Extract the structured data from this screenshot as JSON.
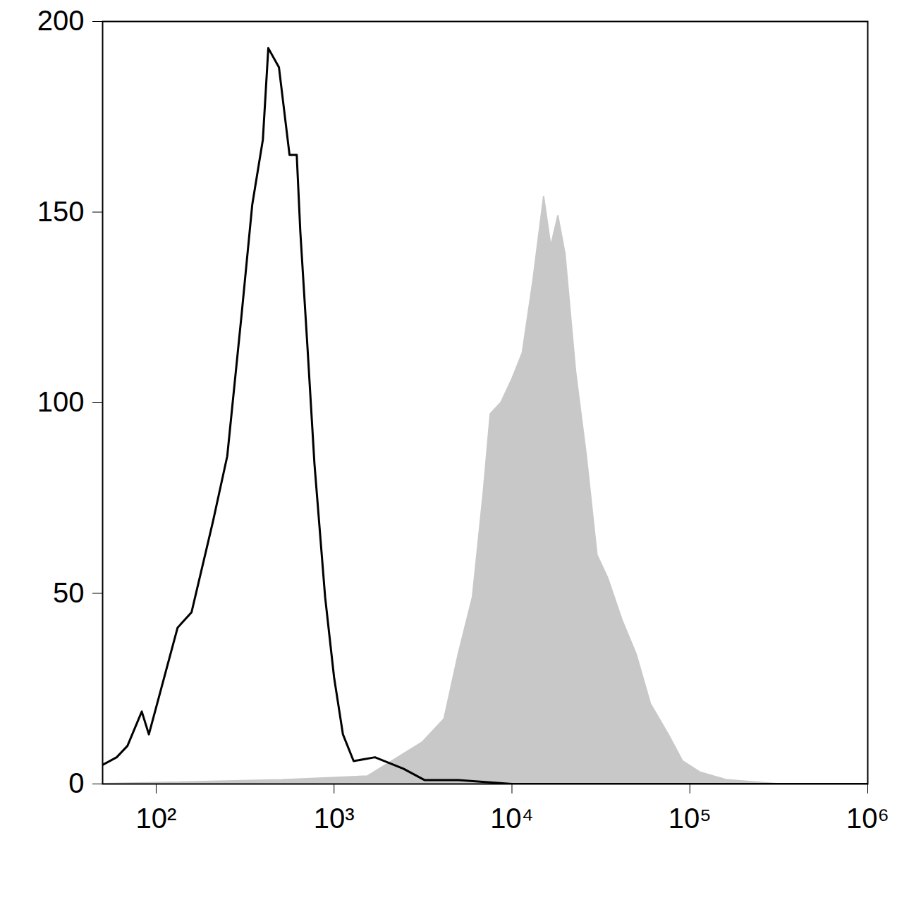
{
  "chart_data": {
    "type": "histogram",
    "log": "x",
    "xlim": [
      50,
      1000000
    ],
    "ylim": [
      0,
      200
    ],
    "xticks": [
      {
        "value": 100,
        "label": "10²"
      },
      {
        "value": 1000,
        "label": "10³"
      },
      {
        "value": 10000,
        "label": "10⁴"
      },
      {
        "value": 100000,
        "label": "10⁵"
      },
      {
        "value": 1000000,
        "label": "10⁶"
      }
    ],
    "yticks": [
      0,
      50,
      100,
      150,
      200
    ],
    "series": [
      {
        "type": "area",
        "color": "#c8c8c8",
        "x": [
          50,
          513,
          1549,
          3162,
          4169,
          5012,
          6026,
          6918,
          7586,
          8710,
          10000,
          11482,
          13183,
          15136,
          16596,
          18197,
          19953,
          22909,
          26303,
          30200,
          34674,
          41687,
          50119,
          60256,
          75858,
          91201,
          114815,
          162181,
          309030,
          1000000
        ],
        "values": [
          0,
          1,
          2,
          11,
          17,
          34,
          49,
          76,
          97,
          100,
          106,
          113,
          132,
          154,
          141,
          149,
          139,
          108,
          86,
          60,
          54,
          43,
          34,
          21,
          13,
          6,
          3,
          1,
          0,
          0
        ]
      },
      {
        "type": "line",
        "color": "#000000",
        "x": [
          50,
          60,
          69,
          83,
          91,
          132,
          158,
          209,
          251,
          302,
          347,
          398,
          427,
          490,
          562,
          617,
          646,
          708,
          776,
          891,
          1000,
          1122,
          1288,
          1698,
          2455,
          3236,
          5012,
          10000,
          100000,
          1000000
        ],
        "values": [
          5,
          7,
          10,
          19,
          13,
          41,
          45,
          69,
          86,
          123,
          152,
          169,
          193,
          188,
          165,
          165,
          145,
          115,
          84,
          49,
          28,
          13,
          6,
          7,
          4,
          1,
          1,
          0,
          0,
          0
        ]
      }
    ]
  }
}
